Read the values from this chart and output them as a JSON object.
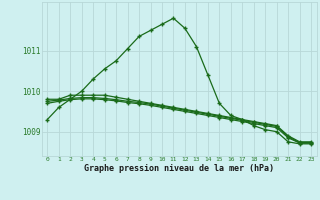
{
  "xlabel": "Graphe pression niveau de la mer (hPa)",
  "hours": [
    0,
    1,
    2,
    3,
    4,
    5,
    6,
    7,
    8,
    9,
    10,
    11,
    12,
    13,
    14,
    15,
    16,
    17,
    18,
    19,
    20,
    21,
    22,
    23
  ],
  "line1": [
    1009.3,
    1009.6,
    1009.8,
    1010.0,
    1010.3,
    1010.55,
    1010.75,
    1011.05,
    1011.35,
    1011.5,
    1011.65,
    1011.8,
    1011.55,
    1011.1,
    1010.4,
    1009.7,
    1009.4,
    1009.3,
    1009.15,
    1009.05,
    1009.0,
    1008.75,
    1008.7,
    1008.7
  ],
  "line2": [
    1009.8,
    1009.8,
    1009.9,
    1009.9,
    1009.9,
    1009.9,
    1009.85,
    1009.8,
    1009.75,
    1009.7,
    1009.65,
    1009.6,
    1009.55,
    1009.5,
    1009.45,
    1009.4,
    1009.35,
    1009.3,
    1009.25,
    1009.2,
    1009.15,
    1008.9,
    1008.75,
    1008.75
  ],
  "line3": [
    1009.75,
    1009.78,
    1009.82,
    1009.84,
    1009.84,
    1009.82,
    1009.79,
    1009.75,
    1009.72,
    1009.68,
    1009.63,
    1009.58,
    1009.53,
    1009.48,
    1009.43,
    1009.38,
    1009.33,
    1009.28,
    1009.23,
    1009.18,
    1009.13,
    1008.88,
    1008.73,
    1008.73
  ],
  "line4": [
    1009.7,
    1009.75,
    1009.79,
    1009.81,
    1009.81,
    1009.79,
    1009.76,
    1009.72,
    1009.69,
    1009.65,
    1009.6,
    1009.55,
    1009.5,
    1009.45,
    1009.4,
    1009.35,
    1009.3,
    1009.25,
    1009.2,
    1009.15,
    1009.1,
    1008.85,
    1008.72,
    1008.72
  ],
  "bg_color": "#cff0f0",
  "line_color": "#1a6b1a",
  "grid_color_major": "#b8d8d8",
  "grid_color_minor": "#d0e8e8",
  "tick_label_color": "#2a7a2a",
  "xlabel_color": "#1a1a1a",
  "ylim": [
    1008.4,
    1012.2
  ],
  "yticks": [
    1009,
    1010,
    1011
  ],
  "xlim": [
    -0.5,
    23.5
  ],
  "marker": "+"
}
